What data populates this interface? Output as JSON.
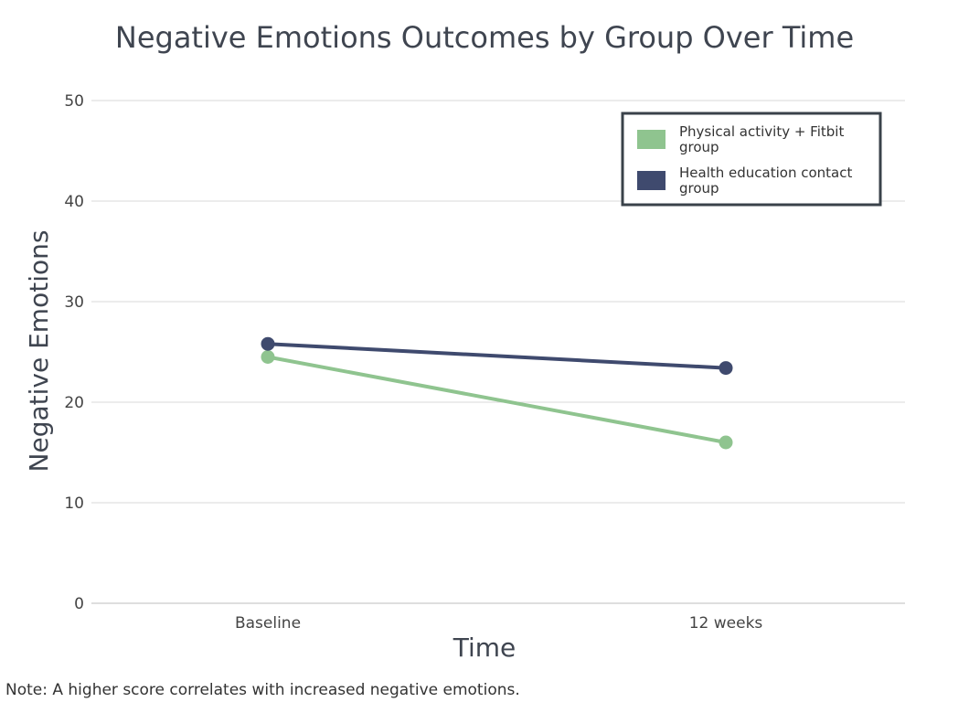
{
  "chart_data": {
    "type": "line",
    "title": "Negative Emotions Outcomes by Group Over Time",
    "xlabel": "Time",
    "ylabel": "Negative Emotions",
    "categories": [
      "Baseline",
      "12 weeks"
    ],
    "ylim": [
      0,
      50
    ],
    "yticks": [
      0,
      10,
      20,
      30,
      40,
      50
    ],
    "grid": true,
    "legend_position": "top-right",
    "series": [
      {
        "name": "Physical activity + Fitbit group",
        "color": "#8fc48f",
        "values": [
          24.5,
          16.0
        ]
      },
      {
        "name": "Health education contact group",
        "color": "#3f4a6e",
        "values": [
          25.8,
          23.4
        ]
      }
    ]
  },
  "note": "Note: A higher score correlates with increased negative emotions."
}
